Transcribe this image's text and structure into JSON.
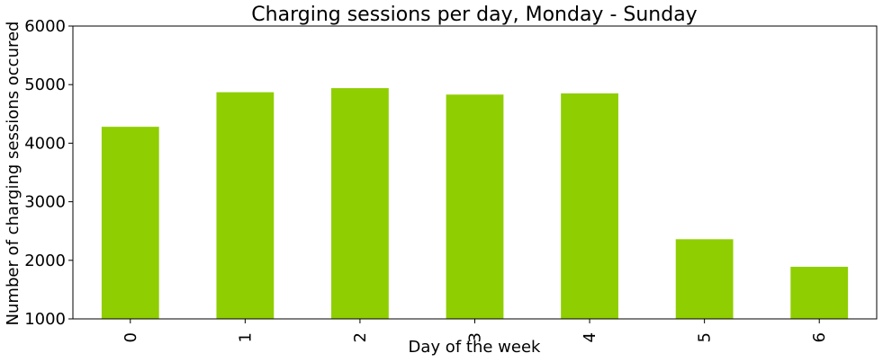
{
  "chart_data": {
    "type": "bar",
    "title": "Charging sessions per day, Monday - Sunday",
    "xlabel": "Day of the week",
    "ylabel": "Number of charging sessions occured",
    "categories": [
      "0",
      "1",
      "2",
      "3",
      "4",
      "5",
      "6"
    ],
    "values": [
      4280,
      4870,
      4940,
      4830,
      4850,
      2360,
      1890
    ],
    "ylim": [
      1000,
      6000
    ],
    "yticks": [
      "1000",
      "2000",
      "3000",
      "4000",
      "5000",
      "6000"
    ],
    "bar_color": "#8fce00",
    "grid": false,
    "legend": "none"
  }
}
